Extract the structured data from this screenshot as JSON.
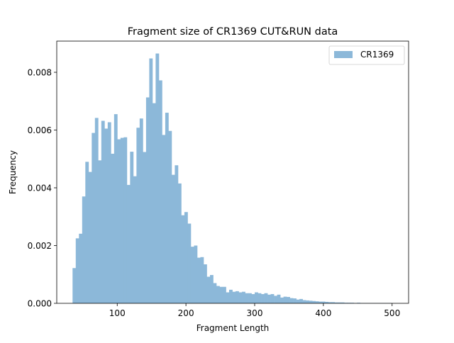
{
  "chart_data": {
    "type": "bar",
    "title": "Fragment size of CR1369 CUT&RUN data",
    "xlabel": "Fragment Length",
    "ylabel": "Frequency",
    "xlim": [
      12,
      524
    ],
    "ylim": [
      0,
      0.00908
    ],
    "x_ticks": [
      100,
      200,
      300,
      400,
      500
    ],
    "x_tick_labels": [
      "100",
      "200",
      "300",
      "400",
      "500"
    ],
    "y_ticks": [
      0,
      0.002,
      0.004,
      0.006,
      0.008
    ],
    "y_tick_labels": [
      "0.000",
      "0.002",
      "0.004",
      "0.006",
      "0.008"
    ],
    "bin_start": 35,
    "bin_width": 4.65,
    "series": [
      {
        "name": "CR1369",
        "color": "#8cb8d9",
        "values": [
          0.00122,
          0.00225,
          0.00241,
          0.0037,
          0.0049,
          0.00455,
          0.0059,
          0.00642,
          0.00495,
          0.00632,
          0.00605,
          0.00627,
          0.00518,
          0.00655,
          0.00568,
          0.00573,
          0.00575,
          0.0041,
          0.00525,
          0.0044,
          0.00608,
          0.0064,
          0.00524,
          0.00713,
          0.00848,
          0.00693,
          0.00865,
          0.00772,
          0.00583,
          0.0066,
          0.00597,
          0.00445,
          0.00478,
          0.00415,
          0.00305,
          0.00316,
          0.00276,
          0.00196,
          0.002,
          0.00158,
          0.0016,
          0.00135,
          0.00092,
          0.00098,
          0.0007,
          0.0006,
          0.00057,
          0.00057,
          0.00038,
          0.00047,
          0.0004,
          0.00042,
          0.00038,
          0.0004,
          0.00035,
          0.00035,
          0.00032,
          0.00038,
          0.00035,
          0.00032,
          0.00035,
          0.0003,
          0.00032,
          0.00026,
          0.0003,
          0.0002,
          0.00023,
          0.00022,
          0.00018,
          0.00017,
          0.00013,
          0.00015,
          0.00011,
          0.0001,
          9e-05,
          8e-05,
          7e-05,
          6e-05,
          6e-05,
          5e-05,
          4e-05,
          4e-05,
          3e-05,
          3e-05,
          3e-05,
          2e-05,
          2e-05,
          2e-05,
          1e-05,
          2e-05,
          1e-05,
          1e-05,
          1e-05,
          1e-05,
          1e-05,
          1e-05,
          1e-05,
          1e-05,
          1e-05,
          1e-05
        ]
      }
    ],
    "legend": {
      "position": "top-right",
      "entries": [
        "CR1369"
      ]
    },
    "grid": false
  }
}
